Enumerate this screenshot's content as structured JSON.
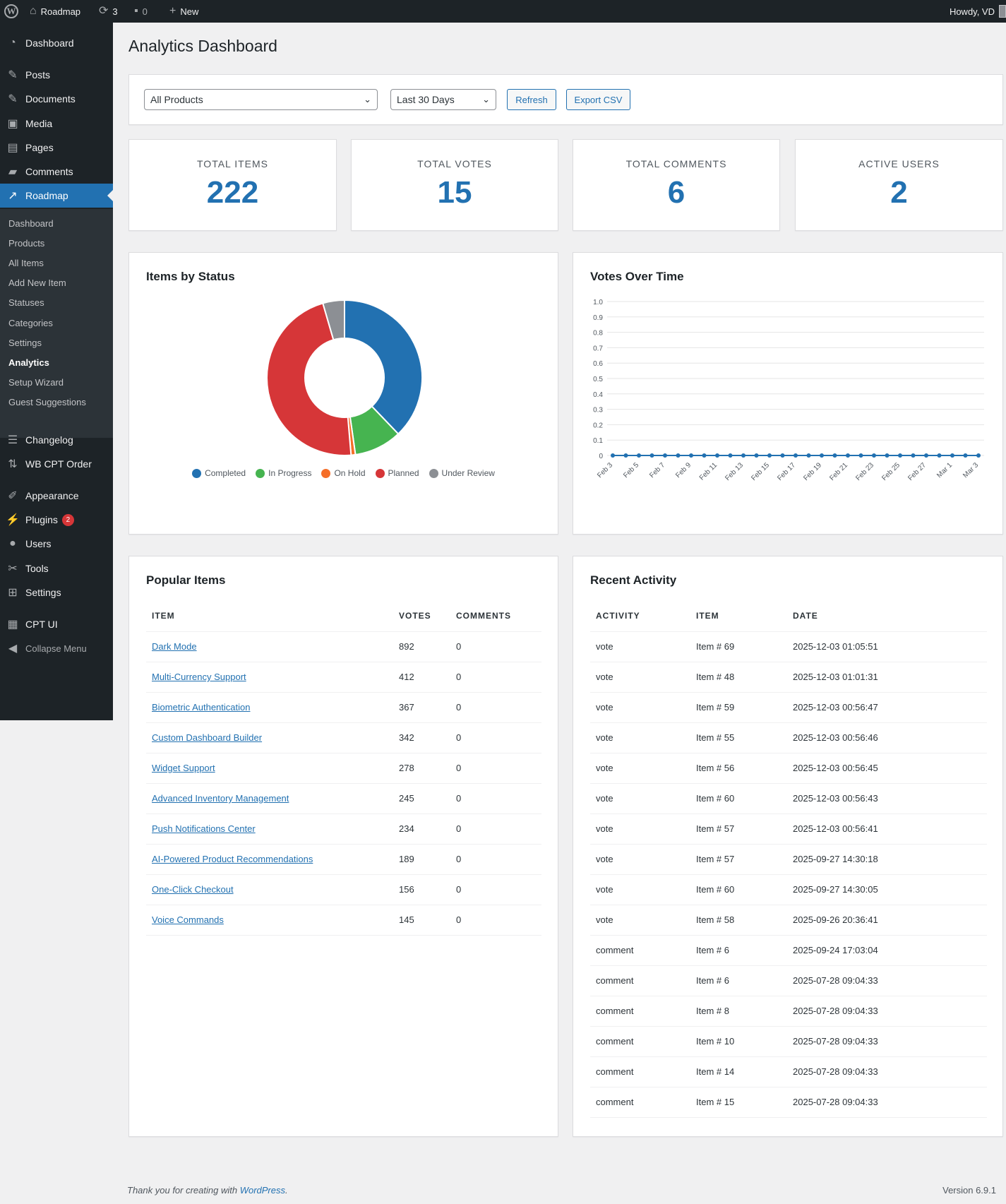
{
  "adminbar": {
    "site_name": "Roadmap",
    "updates_count": "3",
    "comments_count": "0",
    "new_label": "New",
    "howdy": "Howdy, VD"
  },
  "sidebar": {
    "top": [
      {
        "label": "Dashboard",
        "icon": "gauge-icon"
      }
    ],
    "items": [
      {
        "label": "Posts",
        "icon": "pin-icon"
      },
      {
        "label": "Documents",
        "icon": "pin-icon"
      },
      {
        "label": "Media",
        "icon": "media-icon"
      },
      {
        "label": "Pages",
        "icon": "pages-icon"
      },
      {
        "label": "Comments",
        "icon": "comment-icon"
      },
      {
        "label": "Roadmap",
        "icon": "chart-icon"
      }
    ],
    "submenu": [
      "Dashboard",
      "Products",
      "All Items",
      "Add New Item",
      "Statuses",
      "Categories",
      "Settings",
      "Analytics",
      "Setup Wizard",
      "Guest Suggestions"
    ],
    "after": [
      {
        "label": "Changelog",
        "icon": "list-icon"
      },
      {
        "label": "WB CPT Order",
        "icon": "sort-icon"
      },
      {
        "label": "Appearance",
        "icon": "brush-icon"
      },
      {
        "label": "Plugins",
        "icon": "plug-icon",
        "badge": "2"
      },
      {
        "label": "Users",
        "icon": "user-icon"
      },
      {
        "label": "Tools",
        "icon": "wrench-icon"
      },
      {
        "label": "Settings",
        "icon": "settings-icon"
      },
      {
        "label": "CPT UI",
        "icon": "grid-icon"
      }
    ],
    "collapse_label": "Collapse Menu"
  },
  "page": {
    "title": "Analytics Dashboard"
  },
  "filters": {
    "product": "All Products",
    "range": "Last 30 Days",
    "refresh_label": "Refresh",
    "export_label": "Export CSV"
  },
  "stats": [
    {
      "label": "TOTAL ITEMS",
      "value": "222"
    },
    {
      "label": "TOTAL VOTES",
      "value": "15"
    },
    {
      "label": "TOTAL COMMENTS",
      "value": "6"
    },
    {
      "label": "ACTIVE USERS",
      "value": "2"
    }
  ],
  "chart_data": [
    {
      "type": "pie",
      "title": "Items by Status",
      "labels": [
        "Completed",
        "In Progress",
        "On Hold",
        "Planned",
        "Under Review"
      ],
      "values": [
        84,
        22,
        2,
        104,
        10
      ],
      "colors": [
        "#2271b1",
        "#46b450",
        "#f56e28",
        "#d63638",
        "#8c8f94"
      ],
      "legend": "bottom"
    },
    {
      "type": "line",
      "title": "Votes Over Time",
      "x": [
        "Feb 3",
        "Feb 4",
        "Feb 5",
        "Feb 6",
        "Feb 7",
        "Feb 8",
        "Feb 9",
        "Feb 10",
        "Feb 11",
        "Feb 12",
        "Feb 13",
        "Feb 14",
        "Feb 15",
        "Feb 16",
        "Feb 17",
        "Feb 18",
        "Feb 19",
        "Feb 20",
        "Feb 21",
        "Feb 22",
        "Feb 23",
        "Feb 24",
        "Feb 25",
        "Feb 26",
        "Feb 27",
        "Feb 28",
        "Mar 1",
        "Mar 2",
        "Mar 3"
      ],
      "x_tick_labels": [
        "Feb 3",
        "Feb 5",
        "Feb 7",
        "Feb 9",
        "Feb 11",
        "Feb 13",
        "Feb 15",
        "Feb 17",
        "Feb 19",
        "Feb 21",
        "Feb 23",
        "Feb 25",
        "Feb 27",
        "Mar 1",
        "Mar 3"
      ],
      "series": [
        {
          "values": [
            0,
            0,
            0,
            0,
            0,
            0,
            0,
            0,
            0,
            0,
            0,
            0,
            0,
            0,
            0,
            0,
            0,
            0,
            0,
            0,
            0,
            0,
            0,
            0,
            0,
            0,
            0,
            0,
            0
          ],
          "color": "#2271b1"
        }
      ],
      "y_ticks": [
        "0",
        "0.1",
        "0.2",
        "0.3",
        "0.4",
        "0.5",
        "0.6",
        "0.7",
        "0.8",
        "0.9",
        "1.0"
      ],
      "ylim": [
        0,
        1
      ],
      "grid": true
    }
  ],
  "popular": {
    "title": "Popular Items",
    "headers": [
      "ITEM",
      "VOTES",
      "COMMENTS"
    ],
    "rows": [
      [
        "Dark Mode",
        "892",
        "0"
      ],
      [
        "Multi-Currency Support",
        "412",
        "0"
      ],
      [
        "Biometric Authentication",
        "367",
        "0"
      ],
      [
        "Custom Dashboard Builder",
        "342",
        "0"
      ],
      [
        "Widget Support",
        "278",
        "0"
      ],
      [
        "Advanced Inventory Management",
        "245",
        "0"
      ],
      [
        "Push Notifications Center",
        "234",
        "0"
      ],
      [
        "AI-Powered Product Recommendations",
        "189",
        "0"
      ],
      [
        "One-Click Checkout",
        "156",
        "0"
      ],
      [
        "Voice Commands",
        "145",
        "0"
      ]
    ]
  },
  "activity": {
    "title": "Recent Activity",
    "headers": [
      "ACTIVITY",
      "ITEM",
      "DATE"
    ],
    "rows": [
      [
        "vote",
        "Item # 69",
        "2025-12-03 01:05:51"
      ],
      [
        "vote",
        "Item # 48",
        "2025-12-03 01:01:31"
      ],
      [
        "vote",
        "Item # 59",
        "2025-12-03 00:56:47"
      ],
      [
        "vote",
        "Item # 55",
        "2025-12-03 00:56:46"
      ],
      [
        "vote",
        "Item # 56",
        "2025-12-03 00:56:45"
      ],
      [
        "vote",
        "Item # 60",
        "2025-12-03 00:56:43"
      ],
      [
        "vote",
        "Item # 57",
        "2025-12-03 00:56:41"
      ],
      [
        "vote",
        "Item # 57",
        "2025-09-27 14:30:18"
      ],
      [
        "vote",
        "Item # 60",
        "2025-09-27 14:30:05"
      ],
      [
        "vote",
        "Item # 58",
        "2025-09-26 20:36:41"
      ],
      [
        "comment",
        "Item # 6",
        "2025-09-24 17:03:04"
      ],
      [
        "comment",
        "Item # 6",
        "2025-07-28 09:04:33"
      ],
      [
        "comment",
        "Item # 8",
        "2025-07-28 09:04:33"
      ],
      [
        "comment",
        "Item # 10",
        "2025-07-28 09:04:33"
      ],
      [
        "comment",
        "Item # 14",
        "2025-07-28 09:04:33"
      ],
      [
        "comment",
        "Item # 15",
        "2025-07-28 09:04:33"
      ]
    ]
  },
  "footer": {
    "thanks_prefix": "Thank you for creating with ",
    "thanks_link": "WordPress",
    "thanks_suffix": ".",
    "version": "Version 6.9.1"
  }
}
